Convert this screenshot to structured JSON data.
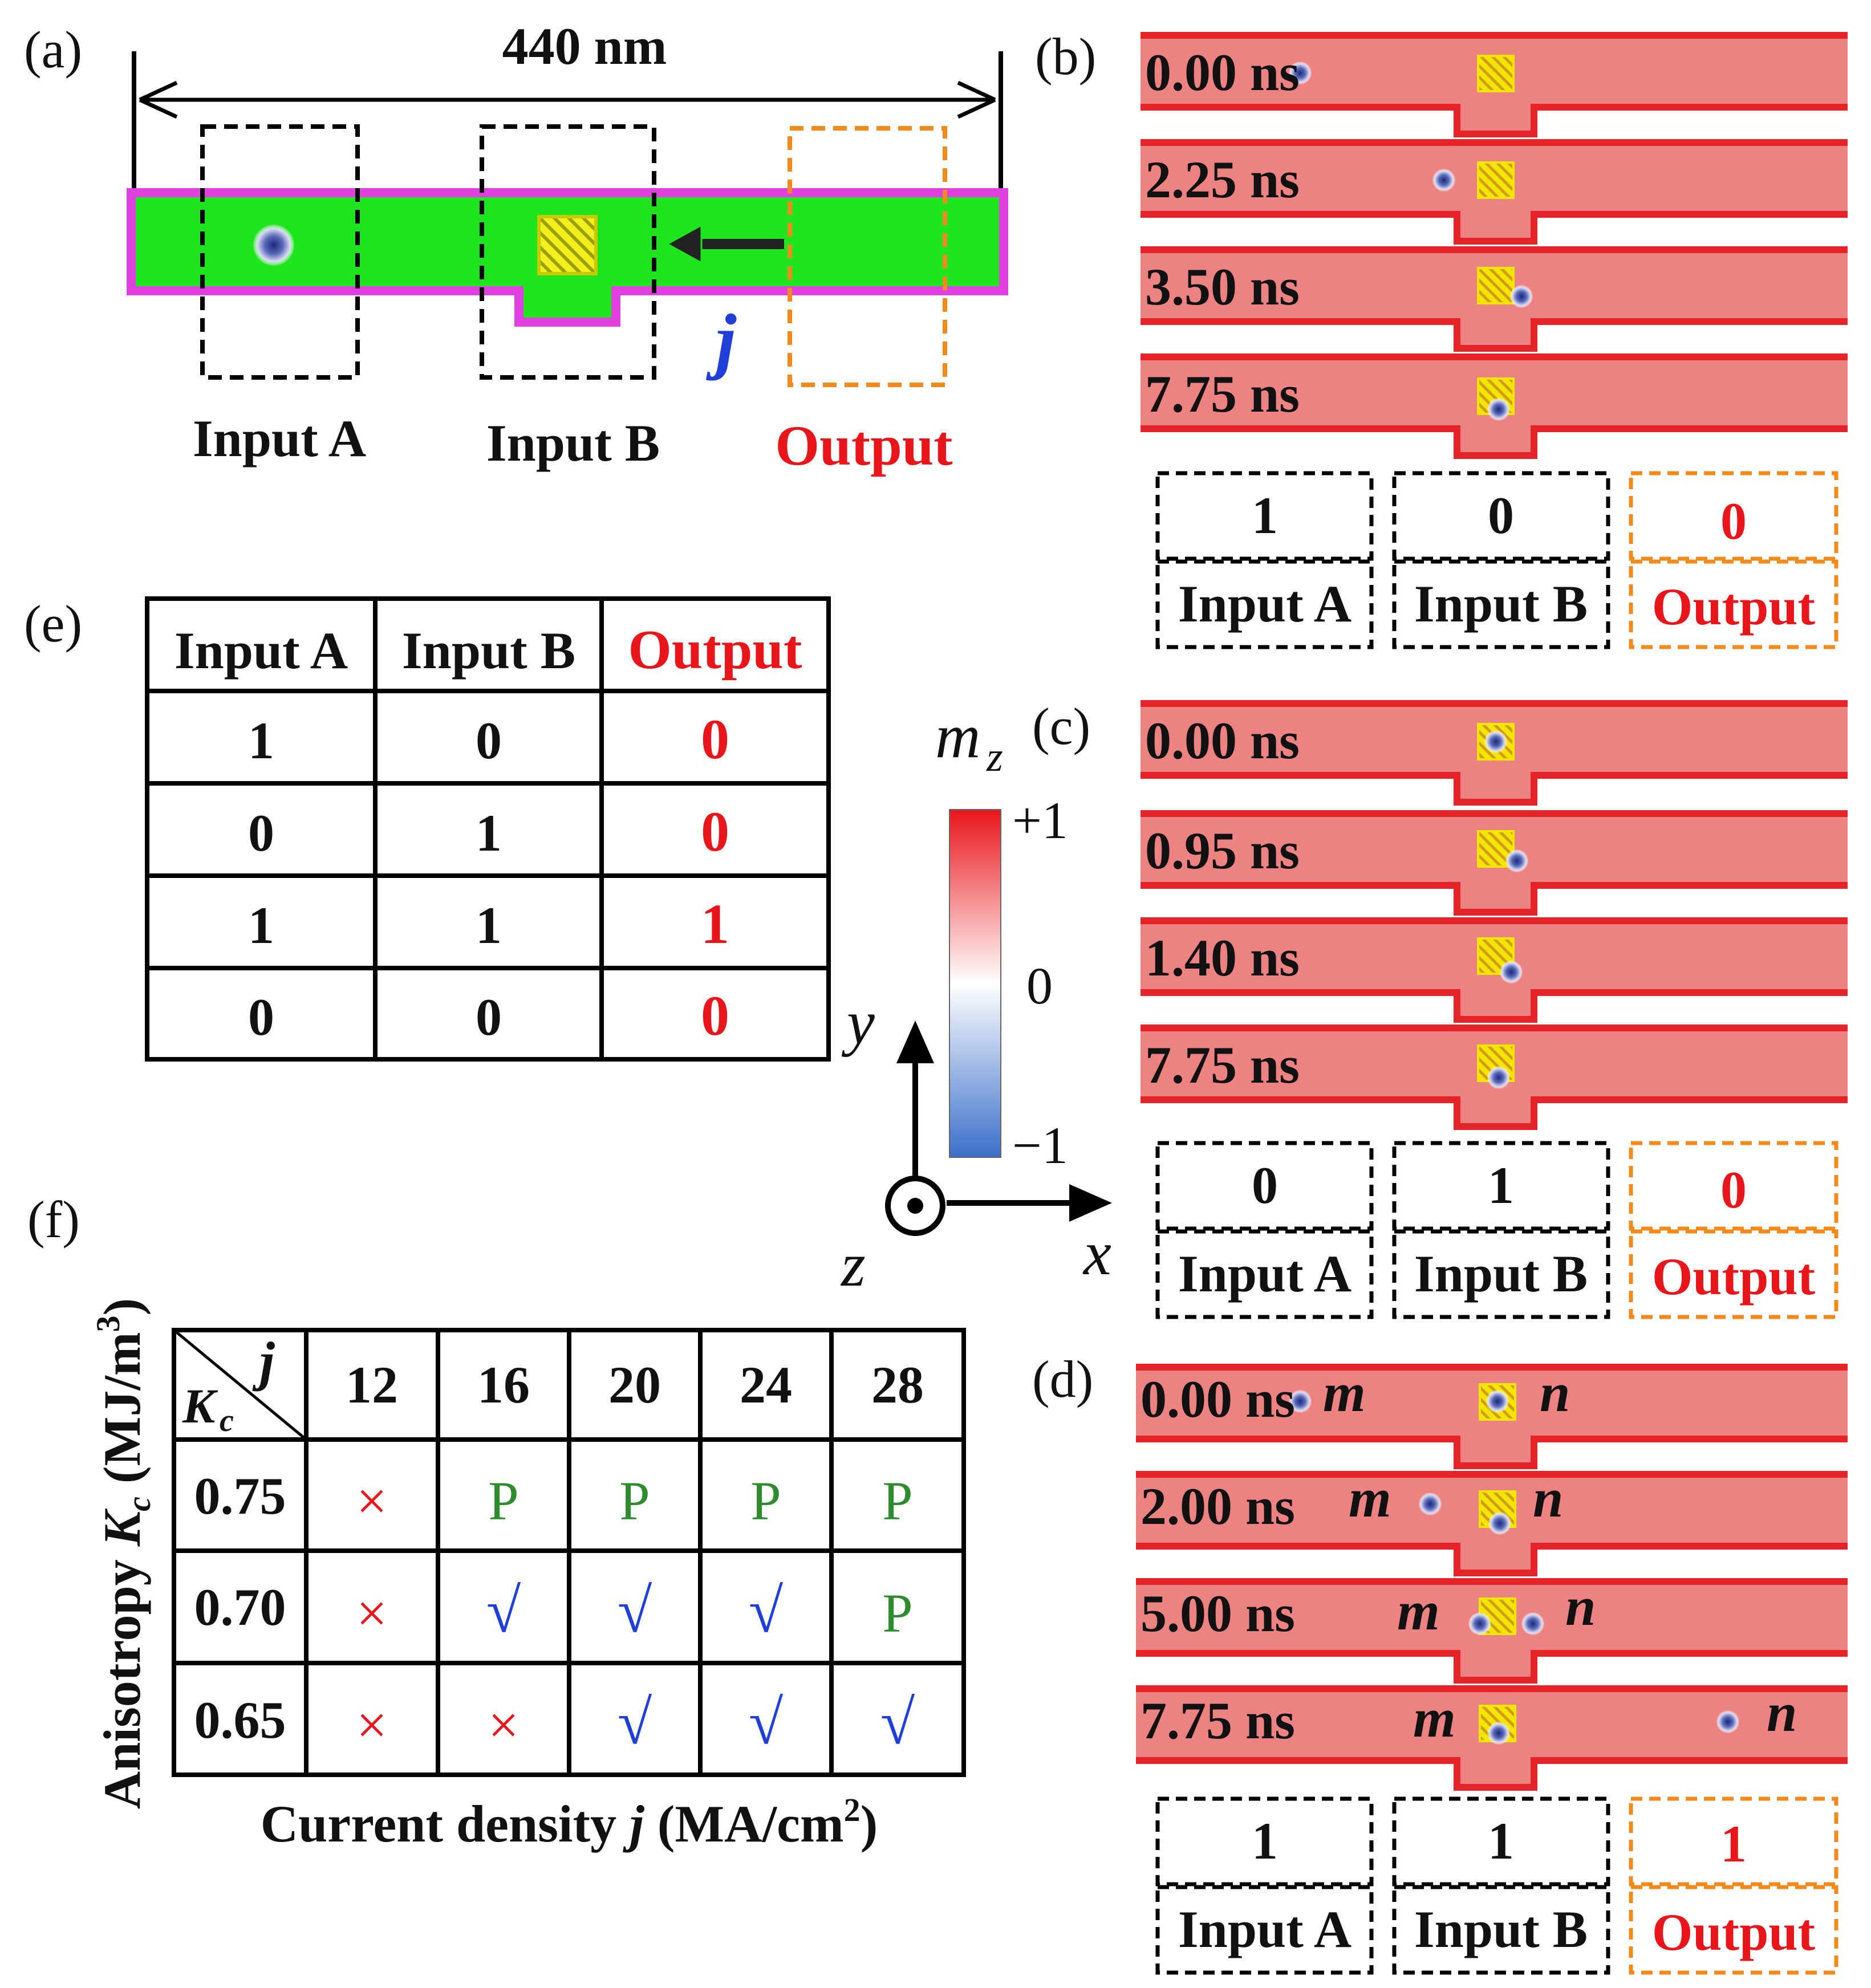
{
  "panels": {
    "a": "(a)",
    "b": "(b)",
    "c": "(c)",
    "d": "(d)",
    "e": "(e)",
    "f": "(f)"
  },
  "colors": {
    "track_red": "#ec8282",
    "track_edge": "#e5242a",
    "green": "#1fe51f",
    "magenta": "#e040e0",
    "output_orange": "#f28a1e",
    "text_red": "#e8161b",
    "check_blue": "#1f3fd6",
    "p_green": "#2e8b2e"
  },
  "panel_a": {
    "length": "440 nm",
    "current_symbol": "j",
    "input_a": "Input A",
    "input_b": "Input B",
    "output": "Output"
  },
  "panel_b": {
    "times": [
      "0.00 ns",
      "2.25 ns",
      "3.50 ns",
      "7.75 ns"
    ],
    "values": {
      "a": "1",
      "b": "0",
      "out": "0"
    },
    "labels": {
      "a": "Input A",
      "b": "Input B",
      "out": "Output"
    }
  },
  "panel_c": {
    "times": [
      "0.00 ns",
      "0.95 ns",
      "1.40 ns",
      "7.75 ns"
    ],
    "values": {
      "a": "0",
      "b": "1",
      "out": "0"
    },
    "labels": {
      "a": "Input A",
      "b": "Input B",
      "out": "Output"
    }
  },
  "panel_d": {
    "times": [
      "0.00 ns",
      "2.00 ns",
      "5.00 ns",
      "7.75 ns"
    ],
    "skyrmion_m": "m",
    "skyrmion_n": "n",
    "values": {
      "a": "1",
      "b": "1",
      "out": "1"
    },
    "labels": {
      "a": "Input A",
      "b": "Input B",
      "out": "Output"
    }
  },
  "truth_table": {
    "headers": [
      "Input A",
      "Input B",
      "Output"
    ],
    "rows": [
      [
        "1",
        "0",
        "0"
      ],
      [
        "0",
        "1",
        "0"
      ],
      [
        "1",
        "1",
        "1"
      ],
      [
        "0",
        "0",
        "0"
      ]
    ]
  },
  "colorbar": {
    "label": "m",
    "sub": "z",
    "max": "+1",
    "mid": "0",
    "min": "−1"
  },
  "axes": {
    "y": "y",
    "x": "x",
    "z": "z"
  },
  "phase_table": {
    "corner_j": "j",
    "corner_k": "K",
    "corner_k_sub": "c",
    "columns": [
      "12",
      "16",
      "20",
      "24",
      "28"
    ],
    "rows": [
      {
        "k": "0.75",
        "cells": [
          "×",
          "P",
          "P",
          "P",
          "P"
        ]
      },
      {
        "k": "0.70",
        "cells": [
          "×",
          "√",
          "√",
          "√",
          "P"
        ]
      },
      {
        "k": "0.65",
        "cells": [
          "×",
          "×",
          "√",
          "√",
          "√"
        ]
      }
    ],
    "x_label_pre": "Current density ",
    "x_label_j": "j",
    "x_label_post": " (MA/cm",
    "x_label_sup": "2",
    "x_label_end": ")",
    "y_label_pre": "Anisotropy ",
    "y_label_k": "K",
    "y_label_sub": "c",
    "y_label_post": " (MJ/m",
    "y_label_sup": "3",
    "y_label_end": ")"
  }
}
